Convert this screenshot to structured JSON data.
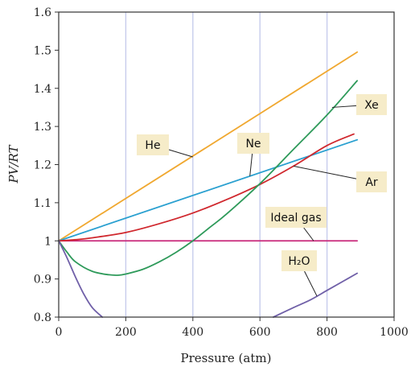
{
  "chart_data": {
    "type": "line",
    "title": "",
    "xlabel": "Pressure (atm)",
    "ylabel": "PV/RT",
    "xlim": [
      0,
      1000
    ],
    "ylim": [
      0.8,
      1.6
    ],
    "x_ticks": [
      "0",
      "200",
      "400",
      "600",
      "800",
      "1000"
    ],
    "y_ticks": [
      "0.8",
      "0.9",
      "1",
      "1.1",
      "1.2",
      "1.3",
      "1.4",
      "1.5",
      "1.6"
    ],
    "grid": "vertical",
    "series": [
      {
        "name": "He",
        "color": "#f0a830",
        "x": [
          0,
          890
        ],
        "y": [
          1.0,
          1.495
        ]
      },
      {
        "name": "Ne",
        "color": "#2aa0d0",
        "x": [
          0,
          890
        ],
        "y": [
          1.0,
          1.265
        ]
      },
      {
        "name": "Ar",
        "color": "#d0282e",
        "x": [
          0,
          50,
          100,
          200,
          300,
          400,
          500,
          600,
          700,
          800,
          880
        ],
        "y": [
          1.0,
          1.003,
          1.008,
          1.022,
          1.045,
          1.073,
          1.108,
          1.148,
          1.196,
          1.25,
          1.28
        ]
      },
      {
        "name": "Xe",
        "color": "#2e9a5a",
        "x": [
          0,
          25,
          50,
          100,
          150,
          180,
          200,
          250,
          300,
          350,
          400,
          450,
          500,
          600,
          700,
          800,
          890
        ],
        "y": [
          1.0,
          0.97,
          0.945,
          0.92,
          0.911,
          0.91,
          0.913,
          0.925,
          0.945,
          0.97,
          1.0,
          1.035,
          1.07,
          1.15,
          1.24,
          1.33,
          1.42
        ]
      },
      {
        "name": "Ideal gas",
        "color": "#c8287a",
        "x": [
          0,
          890
        ],
        "y": [
          1.0,
          1.0
        ]
      },
      {
        "name": "H2O",
        "color": "#7060a8",
        "x": [
          0,
          25,
          50,
          75,
          100,
          130
        ],
        "y": [
          1.0,
          0.955,
          0.905,
          0.86,
          0.825,
          0.8
        ]
      },
      {
        "name": "H2O",
        "color": "#7060a8",
        "x": [
          640,
          700,
          750,
          800,
          850,
          890
        ],
        "y": [
          0.8,
          0.825,
          0.845,
          0.87,
          0.895,
          0.915
        ]
      }
    ],
    "annotations": [
      {
        "label": "He",
        "target_series": "He",
        "point": [
          400,
          1.22
        ]
      },
      {
        "label": "Ne",
        "target_series": "Ne",
        "point": [
          570,
          1.17
        ]
      },
      {
        "label": "Ar",
        "target_series": "Ar",
        "point": [
          700,
          1.196
        ]
      },
      {
        "label": "Xe",
        "target_series": "Xe",
        "point": [
          815,
          1.35
        ]
      },
      {
        "label": "Ideal gas",
        "target_series": "Ideal gas",
        "point": [
          760,
          1.0
        ]
      },
      {
        "label": "H₂O",
        "target_series": "H2O",
        "point": [
          770,
          0.855
        ]
      }
    ]
  }
}
